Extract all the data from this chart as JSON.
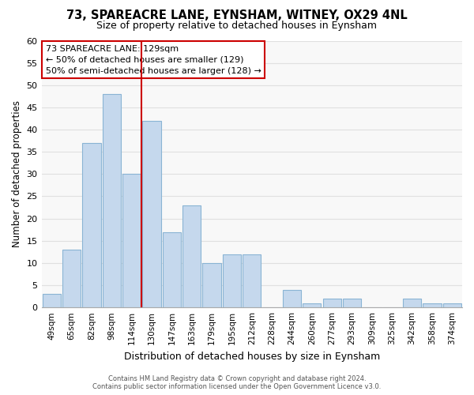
{
  "title": "73, SPAREACRE LANE, EYNSHAM, WITNEY, OX29 4NL",
  "subtitle": "Size of property relative to detached houses in Eynsham",
  "xlabel": "Distribution of detached houses by size in Eynsham",
  "ylabel": "Number of detached properties",
  "bar_labels": [
    "49sqm",
    "65sqm",
    "82sqm",
    "98sqm",
    "114sqm",
    "130sqm",
    "147sqm",
    "163sqm",
    "179sqm",
    "195sqm",
    "212sqm",
    "228sqm",
    "244sqm",
    "260sqm",
    "277sqm",
    "293sqm",
    "309sqm",
    "325sqm",
    "342sqm",
    "358sqm",
    "374sqm"
  ],
  "bar_values": [
    3,
    13,
    37,
    48,
    30,
    42,
    17,
    23,
    10,
    12,
    12,
    0,
    4,
    1,
    2,
    2,
    0,
    0,
    2,
    1,
    1
  ],
  "bar_color": "#c5d8ed",
  "bar_edge_color": "#8ab4d4",
  "vline_color": "#cc0000",
  "ylim": [
    0,
    60
  ],
  "yticks": [
    0,
    5,
    10,
    15,
    20,
    25,
    30,
    35,
    40,
    45,
    50,
    55,
    60
  ],
  "annotation_title": "73 SPAREACRE LANE: 129sqm",
  "annotation_line1": "← 50% of detached houses are smaller (129)",
  "annotation_line2": "50% of semi-detached houses are larger (128) →",
  "annotation_box_color": "#ffffff",
  "annotation_box_edge": "#cc0000",
  "footer_line1": "Contains HM Land Registry data © Crown copyright and database right 2024.",
  "footer_line2": "Contains public sector information licensed under the Open Government Licence v3.0.",
  "background_color": "#ffffff",
  "plot_background": "#f8f8f8",
  "grid_color": "#e0e0e0",
  "title_fontsize": 10.5,
  "subtitle_fontsize": 9
}
